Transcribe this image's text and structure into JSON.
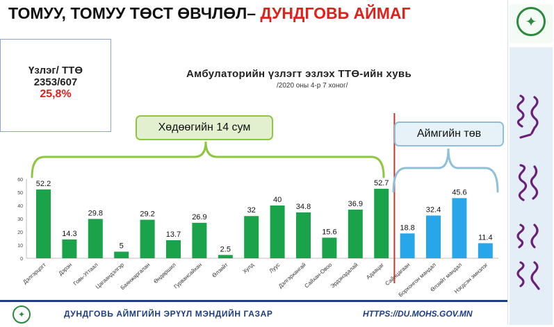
{
  "header": {
    "title_main": "ТОМУУ, ТОМУУ ТӨСТ ӨВЧЛӨЛ–",
    "title_accent": "ДУНДГОВЬ АЙМАГ"
  },
  "stat_box": {
    "line1": "Үзлэг/ ТТӨ",
    "line2": "2353/607",
    "line3": "25,8%"
  },
  "chart_data": {
    "type": "bar",
    "title": "Амбулаторийн үзлэгт эзлэх ТТӨ-ийн хувь",
    "subtitle": "/2020 оны 4-р 7 хоног/",
    "categories": [
      "Дэлгэрцогт",
      "Дэрэн",
      "Говь-Угтаал",
      "Цагаандэлгэр",
      "Баянжаргалан",
      "Өндөршил",
      "Гурвансайхан",
      "Өлзийт",
      "Хулд",
      "Луус",
      "Дэлгэрхангай",
      "Сайхан-Овоо",
      "Эрдэнэдалай",
      "Адаацаг",
      "Сайнцагаан",
      "Борхонгон мандал",
      "Өлзийт мандал",
      "Нэгдсэн эмнэлэг"
    ],
    "values": [
      52.2,
      14.3,
      29.8,
      5,
      29.2,
      13.7,
      26.9,
      2.5,
      32,
      40,
      34.8,
      15.6,
      36.9,
      52.7,
      18.8,
      32.4,
      45.6,
      11.4
    ],
    "groups": [
      {
        "label": "Хөдөөгийн 14 сум",
        "from": 0,
        "to": 13,
        "color": "#1aa34a"
      },
      {
        "label": "Аймгийн төв",
        "from": 14,
        "to": 17,
        "color": "#27a6ea"
      }
    ],
    "ylim": [
      0,
      60
    ],
    "yticks": [
      0,
      10,
      20,
      30,
      40,
      50,
      60
    ],
    "grid": false,
    "legend": "none"
  },
  "footer": {
    "org": "ДУНДГОВЬ АЙМГИЙН ЭРҮҮЛ МЭНДИЙН ГАЗАР",
    "url": "HTTPS://DU.MOHS.GOV.MN"
  },
  "colors": {
    "accent": "#e0201b",
    "rural_bar": "#1aa34a",
    "center_bar": "#27a6ea",
    "rural_bracket": "#8dc63f",
    "center_bracket": "#8fc0da",
    "divider": "#c0392b",
    "footer_line": "#1d3e82"
  },
  "icons": {
    "logo": "ministry-emblem-icon"
  }
}
